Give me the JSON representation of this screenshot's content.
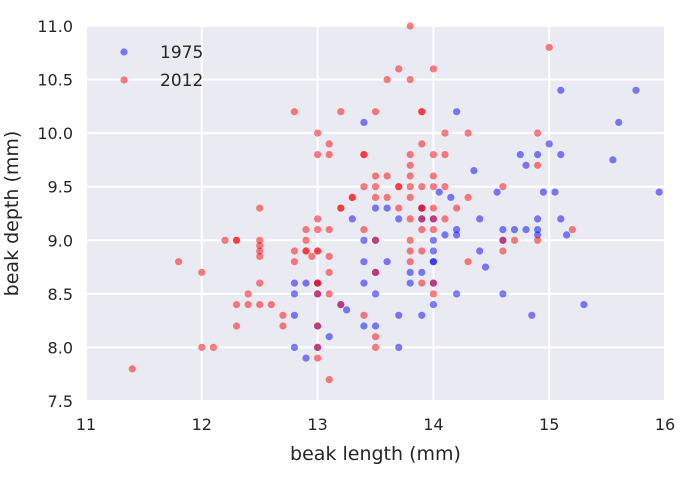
{
  "chart_data": {
    "type": "scatter",
    "xlabel": "beak length (mm)",
    "ylabel": "beak depth (mm)",
    "xlim": [
      11,
      16
    ],
    "ylim": [
      7.5,
      11.0
    ],
    "xticks": [
      "11",
      "12",
      "13",
      "14",
      "15",
      "16"
    ],
    "yticks": [
      "7.5",
      "8.0",
      "8.5",
      "9.0",
      "9.5",
      "10.0",
      "10.5",
      "11.0"
    ],
    "grid": true,
    "legend_position": "top-left",
    "background": "#EAEAF2",
    "series": [
      {
        "name": "1975",
        "color": "#0000FF",
        "opacity": 0.5,
        "points": [
          [
            12.8,
            8.6
          ],
          [
            12.8,
            8.5
          ],
          [
            12.8,
            8.3
          ],
          [
            12.8,
            8.0
          ],
          [
            12.9,
            8.6
          ],
          [
            12.9,
            7.9
          ],
          [
            13.0,
            8.6
          ],
          [
            13.0,
            8.5
          ],
          [
            13.0,
            8.2
          ],
          [
            13.0,
            8.0
          ],
          [
            13.1,
            8.1
          ],
          [
            13.2,
            8.4
          ],
          [
            13.25,
            8.35
          ],
          [
            13.3,
            9.2
          ],
          [
            13.4,
            10.1
          ],
          [
            13.4,
            9.0
          ],
          [
            13.4,
            8.8
          ],
          [
            13.4,
            8.6
          ],
          [
            13.4,
            8.2
          ],
          [
            13.5,
            9.3
          ],
          [
            13.5,
            9.0
          ],
          [
            13.5,
            8.7
          ],
          [
            13.5,
            8.5
          ],
          [
            13.5,
            8.2
          ],
          [
            13.6,
            9.3
          ],
          [
            13.6,
            8.8
          ],
          [
            13.7,
            9.2
          ],
          [
            13.7,
            8.3
          ],
          [
            13.7,
            8.0
          ],
          [
            13.8,
            8.7
          ],
          [
            13.8,
            8.6
          ],
          [
            13.9,
            9.3
          ],
          [
            13.9,
            9.2
          ],
          [
            13.9,
            8.7
          ],
          [
            13.9,
            8.3
          ],
          [
            14.0,
            9.2
          ],
          [
            14.0,
            9.0
          ],
          [
            14.0,
            8.9
          ],
          [
            14.0,
            8.8
          ],
          [
            14.0,
            8.8
          ],
          [
            14.0,
            8.6
          ],
          [
            14.0,
            8.4
          ],
          [
            14.05,
            9.45
          ],
          [
            14.1,
            9.05
          ],
          [
            14.15,
            9.4
          ],
          [
            14.2,
            10.2
          ],
          [
            14.2,
            9.1
          ],
          [
            14.2,
            9.05
          ],
          [
            14.2,
            8.5
          ],
          [
            14.35,
            9.65
          ],
          [
            14.4,
            9.2
          ],
          [
            14.4,
            8.9
          ],
          [
            14.45,
            8.75
          ],
          [
            14.55,
            9.45
          ],
          [
            14.6,
            9.1
          ],
          [
            14.6,
            9.0
          ],
          [
            14.6,
            8.5
          ],
          [
            14.7,
            9.1
          ],
          [
            14.75,
            9.8
          ],
          [
            14.8,
            9.7
          ],
          [
            14.8,
            9.1
          ],
          [
            14.85,
            8.3
          ],
          [
            14.9,
            9.8
          ],
          [
            14.9,
            9.2
          ],
          [
            14.9,
            9.1
          ],
          [
            14.9,
            9.05
          ],
          [
            14.95,
            9.45
          ],
          [
            15.0,
            9.9
          ],
          [
            15.05,
            9.45
          ],
          [
            15.1,
            10.4
          ],
          [
            15.1,
            9.8
          ],
          [
            15.1,
            9.2
          ],
          [
            15.15,
            9.05
          ],
          [
            15.3,
            8.4
          ],
          [
            15.55,
            9.75
          ],
          [
            15.6,
            10.1
          ],
          [
            15.75,
            10.4
          ],
          [
            15.95,
            9.45
          ]
        ]
      },
      {
        "name": "2012",
        "color": "#FF0000",
        "opacity": 0.5,
        "points": [
          [
            11.4,
            7.8
          ],
          [
            11.8,
            8.8
          ],
          [
            12.0,
            8.7
          ],
          [
            12.0,
            8.0
          ],
          [
            12.1,
            8.0
          ],
          [
            12.2,
            9.0
          ],
          [
            12.3,
            9.0
          ],
          [
            12.3,
            9.0
          ],
          [
            12.3,
            8.4
          ],
          [
            12.3,
            8.2
          ],
          [
            12.4,
            8.5
          ],
          [
            12.4,
            8.4
          ],
          [
            12.5,
            9.3
          ],
          [
            12.5,
            9.0
          ],
          [
            12.5,
            8.95
          ],
          [
            12.5,
            8.9
          ],
          [
            12.5,
            8.85
          ],
          [
            12.5,
            8.6
          ],
          [
            12.5,
            8.4
          ],
          [
            12.6,
            8.4
          ],
          [
            12.7,
            8.3
          ],
          [
            12.7,
            8.2
          ],
          [
            12.8,
            10.2
          ],
          [
            12.8,
            8.9
          ],
          [
            12.8,
            8.8
          ],
          [
            12.9,
            9.1
          ],
          [
            12.9,
            9.0
          ],
          [
            12.9,
            8.9
          ],
          [
            12.9,
            8.9
          ],
          [
            12.95,
            8.85
          ],
          [
            13.0,
            10.0
          ],
          [
            13.0,
            9.8
          ],
          [
            13.0,
            9.2
          ],
          [
            13.0,
            9.1
          ],
          [
            13.0,
            8.9
          ],
          [
            13.0,
            8.9
          ],
          [
            13.0,
            8.6
          ],
          [
            13.0,
            8.6
          ],
          [
            13.0,
            8.5
          ],
          [
            13.0,
            8.2
          ],
          [
            13.0,
            8.0
          ],
          [
            13.0,
            7.9
          ],
          [
            13.1,
            9.9
          ],
          [
            13.1,
            9.8
          ],
          [
            13.1,
            9.1
          ],
          [
            13.1,
            8.85
          ],
          [
            13.1,
            8.7
          ],
          [
            13.1,
            8.5
          ],
          [
            13.1,
            7.7
          ],
          [
            13.2,
            10.2
          ],
          [
            13.2,
            9.3
          ],
          [
            13.2,
            9.3
          ],
          [
            13.2,
            8.4
          ],
          [
            13.3,
            9.4
          ],
          [
            13.3,
            9.4
          ],
          [
            13.4,
            9.8
          ],
          [
            13.4,
            9.8
          ],
          [
            13.4,
            9.5
          ],
          [
            13.4,
            9.1
          ],
          [
            13.4,
            8.3
          ],
          [
            13.5,
            10.2
          ],
          [
            13.5,
            9.6
          ],
          [
            13.5,
            9.5
          ],
          [
            13.5,
            9.4
          ],
          [
            13.5,
            9.0
          ],
          [
            13.5,
            8.7
          ],
          [
            13.5,
            8.1
          ],
          [
            13.5,
            8.0
          ],
          [
            13.6,
            10.5
          ],
          [
            13.6,
            9.6
          ],
          [
            13.6,
            9.4
          ],
          [
            13.7,
            10.6
          ],
          [
            13.7,
            9.5
          ],
          [
            13.7,
            9.5
          ],
          [
            13.7,
            9.3
          ],
          [
            13.8,
            11.0
          ],
          [
            13.8,
            10.5
          ],
          [
            13.8,
            9.8
          ],
          [
            13.8,
            9.7
          ],
          [
            13.8,
            9.6
          ],
          [
            13.8,
            9.5
          ],
          [
            13.8,
            9.4
          ],
          [
            13.8,
            9.2
          ],
          [
            13.8,
            9.0
          ],
          [
            13.8,
            8.9
          ],
          [
            13.8,
            8.8
          ],
          [
            13.9,
            10.2
          ],
          [
            13.9,
            10.2
          ],
          [
            13.9,
            9.9
          ],
          [
            13.9,
            9.5
          ],
          [
            13.9,
            9.3
          ],
          [
            13.9,
            9.3
          ],
          [
            13.9,
            9.2
          ],
          [
            13.9,
            9.1
          ],
          [
            13.9,
            8.9
          ],
          [
            13.9,
            8.6
          ],
          [
            14.0,
            10.6
          ],
          [
            14.0,
            9.8
          ],
          [
            14.0,
            9.6
          ],
          [
            14.0,
            9.5
          ],
          [
            14.0,
            9.3
          ],
          [
            14.0,
            9.2
          ],
          [
            14.0,
            9.1
          ],
          [
            14.0,
            8.6
          ],
          [
            14.0,
            8.5
          ],
          [
            14.1,
            10.0
          ],
          [
            14.1,
            9.8
          ],
          [
            14.1,
            9.5
          ],
          [
            14.1,
            9.2
          ],
          [
            14.2,
            9.3
          ],
          [
            14.3,
            10.0
          ],
          [
            14.3,
            9.4
          ],
          [
            14.3,
            8.8
          ],
          [
            14.6,
            9.5
          ],
          [
            14.6,
            9.0
          ],
          [
            14.6,
            8.9
          ],
          [
            14.7,
            9.0
          ],
          [
            14.9,
            10.0
          ],
          [
            14.9,
            9.7
          ],
          [
            14.9,
            9.0
          ],
          [
            15.0,
            10.8
          ],
          [
            15.2,
            9.1
          ]
        ]
      }
    ]
  }
}
